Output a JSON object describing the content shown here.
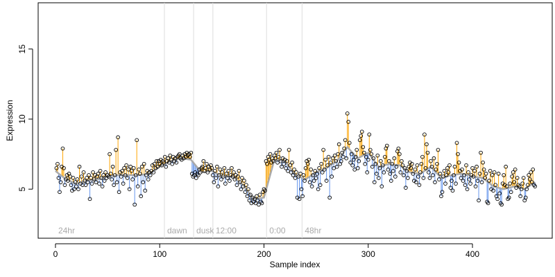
{
  "chart_data": {
    "type": "scatter",
    "xlabel": "Sample index",
    "ylabel": "Expression",
    "xlim": [
      -16.6,
      476.5
    ],
    "ylim": [
      1.5,
      18.3
    ],
    "xticks": [
      0,
      100,
      200,
      300,
      400
    ],
    "yticks": [
      5,
      10,
      15
    ],
    "point_color": "#000000",
    "above_color": "#ffa500",
    "below_color": "#6495ed",
    "smooth_color": "#aaaaaa",
    "vline_color": "#dddddd",
    "vlines": [
      104.5,
      132.5,
      151,
      202.5,
      236.5
    ],
    "phase_labels": [
      {
        "x": 0,
        "label": "24hr"
      },
      {
        "x": 104.5,
        "label": "dawn"
      },
      {
        "x": 132.5,
        "label": "dusk"
      },
      {
        "x": 151,
        "label": "12:00"
      },
      {
        "x": 202.5,
        "label": "0:00"
      },
      {
        "x": 236.5,
        "label": "48hr"
      }
    ],
    "phase_label_y": 2.0,
    "x": [
      1,
      2,
      3,
      4,
      5,
      6,
      7,
      8,
      9,
      10,
      11,
      12,
      13,
      14,
      15,
      16,
      17,
      18,
      19,
      20,
      21,
      22,
      23,
      24,
      25,
      26,
      27,
      28,
      29,
      30,
      31,
      32,
      33,
      34,
      35,
      36,
      37,
      38,
      39,
      40,
      41,
      42,
      43,
      44,
      45,
      46,
      47,
      48,
      49,
      50,
      51,
      52,
      53,
      54,
      55,
      56,
      57,
      58,
      59,
      60,
      61,
      62,
      63,
      64,
      65,
      66,
      67,
      68,
      69,
      70,
      71,
      72,
      73,
      74,
      75,
      76,
      77,
      78,
      79,
      80,
      81,
      82,
      83,
      84,
      85,
      86,
      87,
      88,
      89,
      90,
      91,
      92,
      93,
      94,
      95,
      96,
      97,
      98,
      99,
      100,
      101,
      102,
      103,
      104,
      105,
      106,
      107,
      108,
      109,
      110,
      111,
      112,
      113,
      114,
      115,
      116,
      117,
      118,
      119,
      120,
      121,
      122,
      123,
      124,
      125,
      126,
      127,
      128,
      129,
      130,
      131,
      132,
      133,
      134,
      135,
      136,
      137,
      138,
      139,
      140,
      141,
      142,
      143,
      144,
      145,
      146,
      147,
      148,
      149,
      150,
      151,
      152,
      153,
      154,
      155,
      156,
      157,
      158,
      159,
      160,
      161,
      162,
      163,
      164,
      165,
      166,
      167,
      168,
      169,
      170,
      171,
      172,
      173,
      174,
      175,
      176,
      177,
      178,
      179,
      180,
      181,
      182,
      183,
      184,
      185,
      186,
      187,
      188,
      189,
      190,
      191,
      192,
      193,
      194,
      195,
      196,
      197,
      198,
      199,
      200,
      201,
      202,
      203,
      204,
      205,
      206,
      207,
      208,
      209,
      210,
      211,
      212,
      213,
      214,
      215,
      216,
      217,
      218,
      219,
      220,
      221,
      222,
      223,
      224,
      225,
      226,
      227,
      228,
      229,
      230,
      231,
      232,
      233,
      234,
      235,
      236,
      237,
      238,
      239,
      240,
      241,
      242,
      243,
      244,
      245,
      246,
      247,
      248,
      249,
      250,
      251,
      252,
      253,
      254,
      255,
      256,
      257,
      258,
      259,
      260,
      261,
      262,
      263,
      264,
      265,
      266,
      267,
      268,
      269,
      270,
      271,
      272,
      273,
      274,
      275,
      276,
      277,
      278,
      279,
      280,
      281,
      282,
      283,
      284,
      285,
      286,
      287,
      288,
      289,
      290,
      291,
      292,
      293,
      294,
      295,
      296,
      297,
      298,
      299,
      300,
      301,
      302,
      303,
      304,
      305,
      306,
      307,
      308,
      309,
      310,
      311,
      312,
      313,
      314,
      315,
      316,
      317,
      318,
      319,
      320,
      321,
      322,
      323,
      324,
      325,
      326,
      327,
      328,
      329,
      330,
      331,
      332,
      333,
      334,
      335,
      336,
      337,
      338,
      339,
      340,
      341,
      342,
      343,
      344,
      345,
      346,
      347,
      348,
      349,
      350,
      351,
      352,
      353,
      354,
      355,
      356,
      357,
      358,
      359,
      360,
      361,
      362,
      363,
      364,
      365,
      366,
      367,
      368,
      369,
      370,
      371,
      372,
      373,
      374,
      375,
      376,
      377,
      378,
      379,
      380,
      381,
      382,
      383,
      384,
      385,
      386,
      387,
      388,
      389,
      390,
      391,
      392,
      393,
      394,
      395,
      396,
      397,
      398,
      399,
      400,
      401,
      402,
      403,
      404,
      405,
      406,
      407,
      408,
      409,
      410,
      411,
      412,
      413,
      414,
      415,
      416,
      417,
      418,
      419,
      420,
      421,
      422,
      423,
      424,
      425,
      426,
      427,
      428,
      429,
      430,
      431,
      432,
      433,
      434,
      435,
      436,
      437,
      438,
      439,
      440,
      441,
      442,
      443,
      444,
      445,
      446,
      447,
      448,
      449,
      450,
      451,
      452,
      453,
      454,
      455,
      456,
      457,
      458,
      459,
      460
    ],
    "values": [
      6.5,
      6.8,
      5.8,
      4.8,
      5.5,
      6.6,
      7.9,
      6.5,
      5.3,
      5.7,
      6.0,
      5.6,
      6.1,
      5.9,
      5.3,
      4.9,
      5.8,
      5.0,
      5.5,
      5.2,
      5.7,
      5.0,
      6.6,
      5.4,
      5.9,
      5.3,
      6.2,
      5.6,
      5.3,
      5.8,
      5.5,
      6.0,
      4.3,
      5.8,
      5.4,
      6.2,
      5.7,
      6.0,
      5.5,
      5.9,
      6.1,
      5.4,
      6.3,
      5.8,
      5.2,
      6.0,
      5.6,
      6.2,
      5.8,
      6.0,
      5.9,
      7.5,
      6.1,
      5.7,
      6.6,
      5.3,
      6.0,
      7.8,
      5.5,
      8.7,
      4.8,
      6.2,
      5.9,
      6.3,
      5.4,
      6.5,
      6.0,
      6.7,
      5.8,
      6.4,
      5.0,
      6.6,
      6.3,
      5.7,
      6.5,
      3.9,
      6.0,
      8.5,
      5.2,
      6.4,
      6.1,
      4.5,
      6.6,
      5.5,
      6.8,
      4.9,
      6.0,
      6.3,
      5.7,
      6.2,
      6.0,
      6.3,
      6.7,
      6.2,
      6.8,
      6.5,
      7.0,
      6.6,
      7.0,
      6.8,
      7.1,
      6.7,
      7.0,
      6.9,
      7.3,
      6.6,
      7.0,
      7.2,
      6.9,
      7.4,
      7.1,
      6.8,
      7.3,
      7.0,
      7.2,
      6.9,
      7.3,
      7.4,
      7.5,
      7.2,
      7.1,
      7.4,
      7.2,
      7.5,
      7.3,
      7.6,
      7.4,
      7.5,
      7.3,
      7.6,
      6.1,
      5.9,
      6.0,
      6.2,
      5.8,
      6.1,
      6.0,
      6.4,
      6.2,
      6.5,
      6.6,
      7.0,
      6.3,
      6.5,
      6.8,
      6.2,
      6.6,
      6.4,
      6.7,
      6.5,
      6.0,
      5.5,
      6.3,
      5.8,
      6.6,
      5.2,
      6.0,
      6.4,
      5.7,
      6.2,
      5.9,
      6.5,
      5.4,
      6.1,
      5.8,
      6.3,
      5.6,
      6.0,
      6.5,
      5.9,
      6.2,
      5.7,
      6.0,
      5.3,
      5.9,
      6.3,
      5.5,
      5.0,
      5.8,
      5.2,
      5.6,
      4.8,
      5.3,
      4.5,
      5.0,
      4.2,
      4.6,
      4.0,
      4.4,
      4.1,
      4.3,
      4.0,
      4.5,
      4.2,
      3.9,
      4.6,
      4.1,
      4.0,
      4.8,
      5.0,
      4.9,
      7.0,
      6.8,
      7.3,
      7.1,
      7.5,
      6.9,
      7.2,
      7.0,
      7.4,
      7.2,
      7.6,
      6.9,
      7.3,
      7.8,
      7.0,
      6.6,
      7.2,
      6.8,
      7.1,
      6.5,
      7.0,
      6.3,
      7.8,
      6.7,
      6.2,
      6.9,
      6.0,
      6.4,
      5.8,
      6.2,
      4.4,
      5.9,
      4.3,
      6.1,
      5.0,
      4.5,
      6.0,
      5.6,
      6.5,
      7.0,
      6.8,
      7.1,
      5.5,
      6.4,
      5.2,
      6.0,
      5.6,
      6.3,
      5.8,
      6.1,
      5.0,
      6.5,
      5.3,
      6.8,
      6.2,
      7.8,
      6.4,
      7.1,
      5.6,
      6.7,
      7.3,
      4.4,
      6.9,
      5.9,
      7.2,
      6.5,
      7.4,
      7.0,
      6.6,
      7.5,
      8.2,
      6.8,
      7.0,
      7.6,
      7.3,
      7.9,
      8.5,
      7.2,
      10.4,
      9.8,
      8.3,
      6.9,
      7.5,
      6.7,
      7.1,
      6.4,
      7.3,
      7.8,
      6.5,
      7.0,
      8.5,
      8.8,
      9.1,
      8.0,
      7.6,
      6.8,
      7.3,
      6.2,
      7.1,
      8.9,
      7.8,
      7.5,
      6.6,
      7.2,
      5.5,
      6.8,
      6.1,
      7.4,
      5.8,
      6.5,
      7.0,
      5.2,
      6.7,
      6.2,
      7.3,
      7.9,
      8.1,
      6.4,
      7.0,
      6.1,
      5.6,
      6.8,
      6.3,
      7.2,
      5.9,
      6.6,
      7.7,
      7.9,
      7.5,
      6.2,
      7.0,
      6.7,
      6.0,
      6.5,
      5.1,
      6.3,
      5.8,
      6.6,
      6.9,
      6.5,
      6.8,
      6.1,
      5.6,
      6.4,
      5.5,
      6.7,
      5.9,
      5.3,
      6.2,
      6.8,
      7.3,
      5.8,
      8.9,
      6.5,
      8.2,
      7.6,
      6.2,
      5.8,
      7.0,
      6.6,
      6.0,
      7.2,
      5.5,
      6.4,
      6.8,
      7.8,
      5.7,
      6.1,
      4.5,
      4.8,
      5.9,
      6.3,
      5.4,
      6.0,
      6.5,
      6.2,
      6.7,
      5.1,
      5.6,
      4.9,
      6.0,
      6.6,
      5.4,
      8.3,
      7.5,
      6.9,
      6.3,
      5.8,
      6.4,
      5.6,
      6.0,
      5.3,
      6.7,
      5.0,
      6.2,
      5.7,
      5.4,
      6.0,
      6.5,
      5.9,
      6.3,
      5.2,
      6.6,
      5.6,
      4.2,
      6.1,
      7.6,
      5.5,
      6.9,
      6.4,
      5.8,
      6.1,
      4.1,
      4.0,
      5.6,
      6.3,
      5.0,
      6.0,
      4.9,
      6.2,
      5.3,
      4.5,
      4.3,
      6.1,
      4.7,
      4.0,
      3.9,
      5.4,
      6.0,
      5.3,
      6.6,
      5.2,
      4.3,
      4.4,
      5.4,
      4.8,
      5.9,
      6.2,
      5.5,
      6.4,
      5.1,
      5.8,
      5.3,
      5.2,
      4.5,
      5.0,
      5.4,
      5.8,
      4.2,
      4.4,
      5.0,
      5.3,
      6.0,
      5.7,
      6.2,
      5.5,
      6.4,
      5.3,
      5.2
    ],
    "smooth": {
      "x": [
        0,
        10,
        20,
        30,
        40,
        50,
        60,
        70,
        80,
        90,
        100,
        110,
        120,
        130,
        140,
        150,
        160,
        170,
        180,
        190,
        200,
        210,
        220,
        230,
        240,
        250,
        260,
        270,
        280,
        290,
        300,
        310,
        320,
        330,
        340,
        350,
        360,
        370,
        380,
        390,
        400,
        410,
        420,
        430,
        440,
        450,
        460
      ],
      "values": [
        6.3,
        5.7,
        5.4,
        5.6,
        5.7,
        5.9,
        6.0,
        6.0,
        6.0,
        6.1,
        6.6,
        7.0,
        7.2,
        7.1,
        6.2,
        6.3,
        5.9,
        5.9,
        5.3,
        4.3,
        4.4,
        7.1,
        7.0,
        6.0,
        5.7,
        6.2,
        6.5,
        7.0,
        8.0,
        7.2,
        7.6,
        6.6,
        6.8,
        6.7,
        6.2,
        6.1,
        6.6,
        5.8,
        6.0,
        6.1,
        5.9,
        5.8,
        5.2,
        5.0,
        5.2,
        5.0,
        5.5
      ]
    }
  }
}
